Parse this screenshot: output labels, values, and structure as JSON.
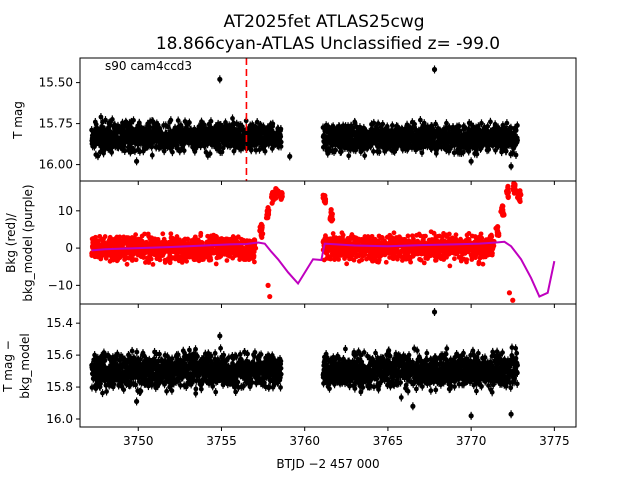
{
  "title_line1": "AT2025fet  ATLAS25cwg",
  "title_line2": "18.866cyan-ATLAS Unclassified z= -99.0",
  "chart_data": [
    {
      "type": "scatter",
      "panel": "top",
      "ylabel": "T mag",
      "annotation": "s90 cam4ccd3",
      "y_inverted": true,
      "ylim": [
        16.1,
        15.35
      ],
      "yticks": [
        "15.50",
        "15.75",
        "16.00"
      ],
      "xlim": [
        3746.5,
        3776.3
      ],
      "marker_line_x": 3756.5,
      "series": [
        {
          "color": "#000000",
          "segments": [
            {
              "x_start": 3747.2,
              "x_end": 3758.6,
              "y_center": 15.83,
              "y_spread": 0.1
            },
            {
              "x_start": 3761.1,
              "x_end": 3772.8,
              "y_center": 15.84,
              "y_spread": 0.1
            }
          ],
          "outliers": [
            [
              3767.8,
              15.42
            ],
            [
              3754.9,
              15.48
            ],
            [
              3749.9,
              15.98
            ],
            [
              3770.0,
              15.98
            ],
            [
              3772.4,
              16.01
            ],
            [
              3759.1,
              15.95
            ]
          ]
        }
      ]
    },
    {
      "type": "scatter",
      "panel": "middle",
      "ylabel_line1": "Bkg (red)/",
      "ylabel_line2": "bkg_model (purple)",
      "ylim": [
        -15,
        18
      ],
      "yticks": [
        "10",
        "0",
        "−10"
      ],
      "xlim": [
        3746.5,
        3776.3
      ],
      "series": [
        {
          "color": "#ff0000",
          "segments": [
            {
              "x_start": 3747.2,
              "x_end": 3757.0,
              "y_center": 0.0,
              "y_spread": 4.0
            },
            {
              "x_start": 3761.1,
              "x_end": 3771.3,
              "y_center": 0.0,
              "y_spread": 4.0
            }
          ],
          "flares": [
            {
              "x": [
                3757.0,
                3757.4,
                3757.8,
                3758.1,
                3758.3,
                3758.6
              ],
              "y": [
                1,
                5,
                10,
                14,
                15,
                14
              ]
            },
            {
              "x": [
                3761.2,
                3761.6
              ],
              "y": [
                13,
                8
              ]
            },
            {
              "x": [
                3771.3,
                3771.6,
                3771.9,
                3772.2,
                3772.6,
                3772.9
              ],
              "y": [
                1,
                5,
                10,
                15,
                16,
                14
              ]
            }
          ],
          "dips": [
            [
              3757.8,
              -10
            ],
            [
              3757.9,
              -13
            ],
            [
              3772.3,
              -12
            ],
            [
              3772.5,
              -14
            ]
          ]
        },
        {
          "name": "",
          "color": "#bf00bf",
          "x": [
            3747.2,
            3748.0,
            3750.0,
            3752.0,
            3754.0,
            3755.5,
            3756.5,
            3757.2,
            3757.6,
            3758.0,
            3758.4,
            3759.0,
            3759.3,
            3759.6,
            3760.5,
            3761.0,
            3761.2,
            3763.0,
            3765.0,
            3767.0,
            3769.0,
            3770.5,
            3771.5,
            3772.0,
            3772.4,
            3773.0,
            3773.6,
            3774.1,
            3774.6,
            3775.0
          ],
          "y": [
            -0.6,
            -0.3,
            0.0,
            0.3,
            0.7,
            1.0,
            1.1,
            1.5,
            1.2,
            -1.0,
            -3.0,
            -6.5,
            -8.0,
            -9.5,
            -3.0,
            -3.2,
            1.2,
            0.7,
            0.5,
            0.8,
            1.0,
            1.2,
            1.5,
            1.7,
            0.5,
            -3.0,
            -8.0,
            -13.0,
            -12.0,
            -3.5
          ]
        }
      ]
    },
    {
      "type": "scatter",
      "panel": "bottom",
      "ylabel_line1": "T mag −",
      "ylabel_line2": "bkg_model",
      "y_inverted": true,
      "ylim": [
        16.05,
        15.28
      ],
      "yticks": [
        "15.4",
        "15.6",
        "15.8",
        "16.0"
      ],
      "xlim": [
        3746.5,
        3776.3
      ],
      "xlabel": "BTJD −2 457 000",
      "xticks": [
        "3750",
        "3755",
        "3760",
        "3765",
        "3770",
        "3775"
      ],
      "series": [
        {
          "color": "#000000",
          "segments": [
            {
              "x_start": 3747.2,
              "x_end": 3758.6,
              "y_center": 15.7,
              "y_spread": 0.13
            },
            {
              "x_start": 3761.1,
              "x_end": 3772.8,
              "y_center": 15.7,
              "y_spread": 0.13
            }
          ],
          "outliers": [
            [
              3767.8,
              15.33
            ],
            [
              3754.9,
              15.48
            ],
            [
              3749.9,
              15.89
            ],
            [
              3770.0,
              15.98
            ],
            [
              3772.4,
              15.97
            ],
            [
              3766.5,
              15.92
            ]
          ]
        }
      ]
    }
  ]
}
